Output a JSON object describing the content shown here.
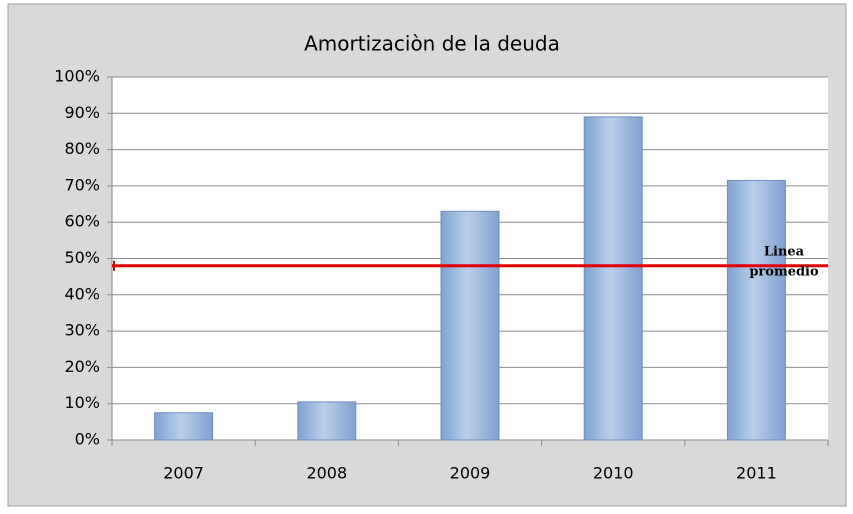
{
  "chart_data": {
    "type": "bar",
    "title": "Amortizaciòn de la deuda",
    "categories": [
      "2007",
      "2008",
      "2009",
      "2010",
      "2011"
    ],
    "values": [
      7.5,
      10.5,
      63,
      89,
      71.5
    ],
    "color": "#95b3d7",
    "ylim": [
      0,
      100
    ],
    "yticks": [
      {
        "value": 0,
        "label": "0%"
      },
      {
        "value": 10,
        "label": "10%"
      },
      {
        "value": 20,
        "label": "20%"
      },
      {
        "value": 30,
        "label": "30%"
      },
      {
        "value": 40,
        "label": "40%"
      },
      {
        "value": 50,
        "label": "50%"
      },
      {
        "value": 60,
        "label": "60%"
      },
      {
        "value": 70,
        "label": "70%"
      },
      {
        "value": 80,
        "label": "80%"
      },
      {
        "value": 90,
        "label": "90%"
      },
      {
        "value": 100,
        "label": "100%"
      }
    ],
    "grid": true,
    "average_line": {
      "value": 48,
      "color": "#e00000",
      "label_lines": [
        "Linea",
        "promedio"
      ]
    }
  }
}
